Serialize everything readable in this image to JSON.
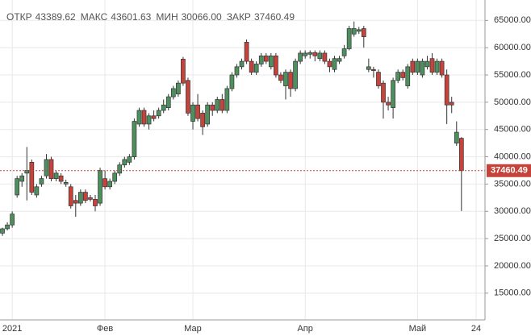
{
  "chart_data": {
    "type": "candlestick",
    "header": [
      {
        "label": "ОТКР",
        "value": "43389.62"
      },
      {
        "label": "МАКС",
        "value": "43601.63"
      },
      {
        "label": "МИН",
        "value": "30066.00"
      },
      {
        "label": "ЗАКР",
        "value": "37460.49"
      }
    ],
    "categories": [
      null,
      null,
      "2021",
      null,
      null,
      null,
      null,
      null,
      null,
      null,
      null,
      null,
      null,
      null,
      null,
      null,
      null,
      null,
      null,
      null,
      null,
      "Фев",
      null,
      null,
      null,
      null,
      null,
      null,
      null,
      null,
      null,
      null,
      null,
      null,
      null,
      null,
      null,
      null,
      null,
      "Мар",
      null,
      null,
      null,
      null,
      null,
      null,
      null,
      null,
      null,
      null,
      null,
      null,
      null,
      null,
      null,
      null,
      null,
      null,
      null,
      null,
      null,
      null,
      "Апр",
      null,
      null,
      null,
      null,
      null,
      null,
      null,
      null,
      null,
      null,
      null,
      null,
      null,
      null,
      null,
      null,
      null,
      null,
      null,
      null,
      null,
      null,
      "Май",
      null,
      null,
      null,
      null,
      null,
      null,
      null,
      null,
      null,
      null,
      null,
      "24"
    ],
    "open": [
      26000,
      26800,
      27500,
      33000,
      35500,
      37000,
      39000,
      33000,
      35000,
      36500,
      39500,
      36000,
      36500,
      35000,
      34500,
      32000,
      31500,
      33500,
      32500,
      32200,
      31500,
      36000,
      34500,
      35500,
      37000,
      38500,
      39000,
      40000,
      46000,
      48500,
      46000,
      47500,
      47500,
      48500,
      49000,
      51000,
      51500,
      57900,
      54000,
      46500,
      49500,
      48000,
      46000,
      49500,
      48500,
      50500,
      48500,
      52500,
      55000,
      56500,
      61000,
      57500,
      55500,
      57000,
      58500,
      56500,
      58500,
      55000,
      53000,
      55500,
      52500,
      57500,
      58500,
      58800,
      59100,
      58000,
      59000,
      57500,
      56000,
      57500,
      58500,
      59800,
      62500,
      63000,
      63500,
      56000,
      56000,
      55500,
      53500,
      50000,
      49000,
      54000,
      55500,
      53000,
      57500,
      55500,
      55000,
      56500,
      58000,
      55500,
      57500,
      55000,
      50000,
      42500,
      43389.62,
      null,
      null,
      null
    ],
    "high": [
      27000,
      28000,
      30000,
      36500,
      37000,
      41800,
      39500,
      35000,
      36500,
      40500,
      40000,
      37500,
      37000,
      35800,
      35000,
      33000,
      34000,
      34000,
      33000,
      33000,
      38000,
      37500,
      36000,
      37500,
      39000,
      40000,
      40500,
      47000,
      49000,
      49000,
      48000,
      48500,
      49000,
      50500,
      51500,
      53000,
      54000,
      58300,
      54500,
      50000,
      51500,
      48500,
      50000,
      50000,
      51000,
      51500,
      53000,
      55500,
      57000,
      58000,
      61500,
      58000,
      57500,
      59000,
      59000,
      59000,
      59000,
      55500,
      56000,
      56000,
      58000,
      59500,
      59500,
      59500,
      59500,
      59500,
      59500,
      58000,
      58500,
      58500,
      60500,
      64000,
      64800,
      63800,
      64000,
      58000,
      56500,
      56000,
      54000,
      51000,
      54500,
      56000,
      56000,
      57000,
      58000,
      58000,
      58000,
      58500,
      59000,
      58000,
      58000,
      56000,
      51000,
      46500,
      43601.63,
      null,
      null,
      null
    ],
    "low": [
      25500,
      26500,
      27000,
      32500,
      34500,
      32000,
      33000,
      32500,
      34500,
      36000,
      35500,
      35500,
      35000,
      34500,
      30500,
      29000,
      31000,
      31500,
      31800,
      30000,
      31000,
      34000,
      34000,
      35000,
      36500,
      38000,
      38500,
      39500,
      45500,
      45500,
      45000,
      46500,
      47000,
      48000,
      48500,
      50500,
      51000,
      53000,
      47500,
      45000,
      46500,
      44000,
      45500,
      47500,
      48000,
      48000,
      48000,
      52000,
      54500,
      56000,
      57000,
      55000,
      55000,
      56500,
      57000,
      56000,
      54500,
      53500,
      50500,
      51000,
      52000,
      57000,
      58000,
      58000,
      57500,
      57500,
      57000,
      55500,
      55500,
      57000,
      58000,
      59500,
      62000,
      62500,
      60000,
      55500,
      54500,
      52500,
      47000,
      48500,
      47000,
      53500,
      54000,
      52500,
      55000,
      55000,
      54500,
      56000,
      55000,
      55000,
      54500,
      46000,
      48000,
      42000,
      30066,
      null,
      null,
      null
    ],
    "close": [
      26800,
      27500,
      29500,
      36000,
      36500,
      37500,
      33500,
      34500,
      36000,
      39500,
      36000,
      37000,
      35500,
      35300,
      31000,
      31500,
      33500,
      32000,
      32200,
      31000,
      37500,
      34500,
      35500,
      37000,
      38500,
      39500,
      40000,
      46500,
      48500,
      46000,
      47500,
      47000,
      48500,
      49500,
      51000,
      52500,
      53500,
      53500,
      48000,
      49500,
      47000,
      45500,
      49500,
      48500,
      50500,
      48500,
      52500,
      55000,
      56500,
      57500,
      57500,
      55500,
      57000,
      58500,
      57500,
      58500,
      55000,
      54000,
      55500,
      52500,
      57500,
      59000,
      59000,
      59100,
      58500,
      59000,
      57500,
      56500,
      58000,
      58000,
      59800,
      63500,
      63500,
      63300,
      62000,
      56500,
      55800,
      53000,
      50000,
      49500,
      54000,
      55500,
      54500,
      56500,
      55500,
      57500,
      57500,
      57500,
      55500,
      57500,
      55000,
      49500,
      49500,
      44500,
      37460.49,
      null,
      null,
      null
    ],
    "current_price": 37460.49,
    "up_color": "#4e8f5e",
    "down_color": "#c5433a",
    "ylim": [
      10100,
      68000
    ],
    "yticks": [
      {
        "value": 15000,
        "label": "15000.00"
      },
      {
        "value": 20000,
        "label": "20000.00"
      },
      {
        "value": 25000,
        "label": "25000.00"
      },
      {
        "value": 30000,
        "label": "30000.00"
      },
      {
        "value": 35000,
        "label": "35000.00"
      },
      {
        "value": 40000,
        "label": "40000.00"
      },
      {
        "value": 45000,
        "label": "45000.00"
      },
      {
        "value": 50000,
        "label": "50000.00"
      },
      {
        "value": 55000,
        "label": "55000.00"
      },
      {
        "value": 60000,
        "label": "60000.00"
      },
      {
        "value": 65000,
        "label": "65000.00"
      }
    ],
    "grid": true
  }
}
